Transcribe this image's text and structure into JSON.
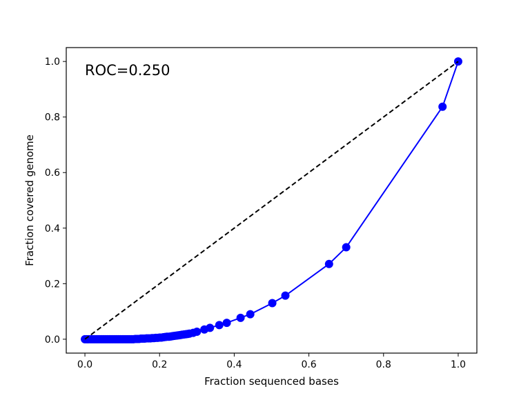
{
  "chart_data": {
    "type": "line",
    "title": "",
    "xlabel": "Fraction sequenced bases",
    "ylabel": "Fraction covered genome",
    "xlim": [
      -0.05,
      1.05
    ],
    "ylim": [
      -0.05,
      1.05
    ],
    "x_ticks": [
      0.0,
      0.2,
      0.4,
      0.6,
      0.8,
      1.0
    ],
    "y_ticks": [
      0.0,
      0.2,
      0.4,
      0.6,
      0.8,
      1.0
    ],
    "x_tick_labels": [
      "0.0",
      "0.2",
      "0.4",
      "0.6",
      "0.8",
      "1.0"
    ],
    "y_tick_labels": [
      "0.0",
      "0.2",
      "0.4",
      "0.6",
      "0.8",
      "1.0"
    ],
    "grid": false,
    "annotation": "ROC=0.250",
    "series": [
      {
        "name": "coverage",
        "color": "#0000ff",
        "style": "solid-markers",
        "x": [
          0.0,
          0.005,
          0.01,
          0.015,
          0.02,
          0.025,
          0.03,
          0.035,
          0.04,
          0.045,
          0.05,
          0.055,
          0.06,
          0.065,
          0.07,
          0.075,
          0.08,
          0.085,
          0.09,
          0.095,
          0.1,
          0.105,
          0.11,
          0.115,
          0.12,
          0.125,
          0.13,
          0.135,
          0.14,
          0.145,
          0.15,
          0.155,
          0.16,
          0.165,
          0.17,
          0.175,
          0.18,
          0.185,
          0.19,
          0.195,
          0.2,
          0.205,
          0.21,
          0.215,
          0.22,
          0.225,
          0.23,
          0.235,
          0.24,
          0.245,
          0.25,
          0.255,
          0.26,
          0.265,
          0.27,
          0.275,
          0.28,
          0.29,
          0.3,
          0.32,
          0.335,
          0.36,
          0.38,
          0.417,
          0.443,
          0.502,
          0.537,
          0.654,
          0.7,
          0.958,
          1.0
        ],
        "y": [
          0.0,
          0.0,
          0.0,
          0.0,
          0.0,
          0.0,
          0.0,
          0.0,
          0.0,
          0.0,
          0.0,
          0.0,
          0.0,
          0.0,
          0.0,
          0.0,
          0.0,
          0.0,
          0.0,
          0.0,
          0.0,
          0.0,
          0.0,
          0.0,
          0.0,
          0.0,
          0.0,
          0.001,
          0.001,
          0.001,
          0.002,
          0.002,
          0.002,
          0.003,
          0.003,
          0.003,
          0.004,
          0.004,
          0.005,
          0.005,
          0.006,
          0.006,
          0.007,
          0.008,
          0.009,
          0.009,
          0.01,
          0.011,
          0.012,
          0.013,
          0.014,
          0.015,
          0.016,
          0.017,
          0.018,
          0.019,
          0.02,
          0.023,
          0.027,
          0.035,
          0.041,
          0.051,
          0.059,
          0.077,
          0.09,
          0.13,
          0.157,
          0.271,
          0.331,
          0.837,
          1.0
        ]
      },
      {
        "name": "diagonal",
        "color": "#000000",
        "style": "dashed",
        "x": [
          0.0,
          1.0
        ],
        "y": [
          0.0,
          1.0
        ]
      }
    ]
  }
}
